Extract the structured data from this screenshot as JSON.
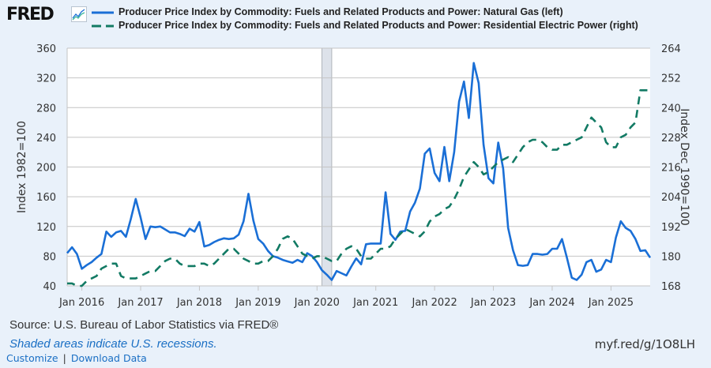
{
  "header": {
    "logo_text": "FRED",
    "logo_icon": "line-chart-icon"
  },
  "legend": [
    {
      "label": "Producer Price Index by Commodity: Fuels and Related Products and Power: Natural Gas (left)",
      "style": "solid",
      "color": "#1a6fd6"
    },
    {
      "label": "Producer Price Index by Commodity: Fuels and Related Products and Power: Residential Electric Power (right)",
      "style": "dashed",
      "color": "#127a64"
    }
  ],
  "footer": {
    "source": "Source: U.S. Bureau of Labor Statistics via FRED®",
    "shaded_note": "Shaded areas indicate U.S. recessions.",
    "customize_label": "Customize",
    "separator": "|",
    "download_label": "Download Data",
    "shortlink": "myf.red/g/1O8LH"
  },
  "chart_data": {
    "type": "line",
    "start": "2015-10",
    "frequency": "monthly",
    "x_tick_labels": [
      "Jan 2016",
      "Jan 2017",
      "Jan 2018",
      "Jan 2019",
      "Jan 2020",
      "Jan 2021",
      "Jan 2022",
      "Jan 2023",
      "Jan 2024",
      "Jan 2025"
    ],
    "left_axis": {
      "label": "Index 1982=100",
      "range": [
        40,
        360
      ],
      "ticks": [
        40,
        80,
        120,
        160,
        200,
        240,
        280,
        320,
        360
      ]
    },
    "right_axis": {
      "label": "Index Dec 1990=100",
      "range": [
        168,
        264
      ],
      "ticks": [
        168,
        180,
        192,
        204,
        216,
        228,
        240,
        252,
        264
      ]
    },
    "grid": true,
    "recessions": [
      {
        "start": "2020-02",
        "end": "2020-04"
      }
    ],
    "series": [
      {
        "name": "Producer Price Index by Commodity: Fuels and Related Products and Power: Natural Gas",
        "axis": "left",
        "color": "#1a6fd6",
        "values": [
          84,
          92,
          83,
          63,
          68,
          72,
          78,
          83,
          113,
          106,
          112,
          114,
          106,
          130,
          157,
          132,
          103,
          120,
          119,
          120,
          116,
          112,
          112,
          110,
          107,
          117,
          113,
          126,
          93,
          95,
          99,
          102,
          104,
          103,
          104,
          109,
          127,
          164,
          128,
          103,
          97,
          87,
          80,
          78,
          75,
          73,
          71,
          75,
          72,
          84,
          80,
          72,
          61,
          55,
          48,
          60,
          57,
          54,
          66,
          77,
          69,
          96,
          97,
          97,
          97,
          166,
          110,
          102,
          113,
          114,
          140,
          152,
          171,
          218,
          225,
          192,
          181,
          227,
          181,
          220,
          288,
          315,
          266,
          340,
          313,
          230,
          185,
          178,
          233,
          198,
          118,
          88,
          68,
          67,
          68,
          83,
          83,
          82,
          83,
          90,
          90,
          103,
          78,
          51,
          48,
          55,
          72,
          75,
          59,
          62,
          75,
          72,
          105,
          127,
          118,
          114,
          103,
          87,
          88,
          78
        ]
      },
      {
        "name": "Producer Price Index by Commodity: Fuels and Related Products and Power: Residential Electric Power",
        "axis": "right",
        "color": "#127a64",
        "values": [
          169,
          169,
          168,
          168,
          170,
          171,
          172,
          175,
          176,
          177,
          177,
          172,
          171,
          171,
          171,
          172,
          173,
          174,
          174,
          176,
          178,
          179,
          179,
          177,
          176,
          176,
          176,
          177,
          177,
          176,
          177,
          179,
          181,
          183,
          183,
          181,
          179,
          178,
          177,
          177,
          178,
          178,
          180,
          183,
          187,
          188,
          187,
          184,
          181,
          180,
          179,
          180,
          180,
          179,
          178,
          178,
          181,
          183,
          184,
          183,
          180,
          179,
          179,
          181,
          183,
          183,
          184,
          187,
          189,
          191,
          190,
          189,
          188,
          190,
          194,
          196,
          197,
          199,
          200,
          203,
          207,
          212,
          215,
          218,
          216,
          213,
          214,
          216,
          218,
          219,
          220,
          218,
          221,
          224,
          226,
          227,
          227,
          226,
          224,
          223,
          223,
          225,
          225,
          226,
          227,
          228,
          232,
          236,
          234,
          232,
          226,
          224,
          224,
          228,
          229,
          232,
          234,
          247,
          247,
          247
        ]
      }
    ]
  }
}
